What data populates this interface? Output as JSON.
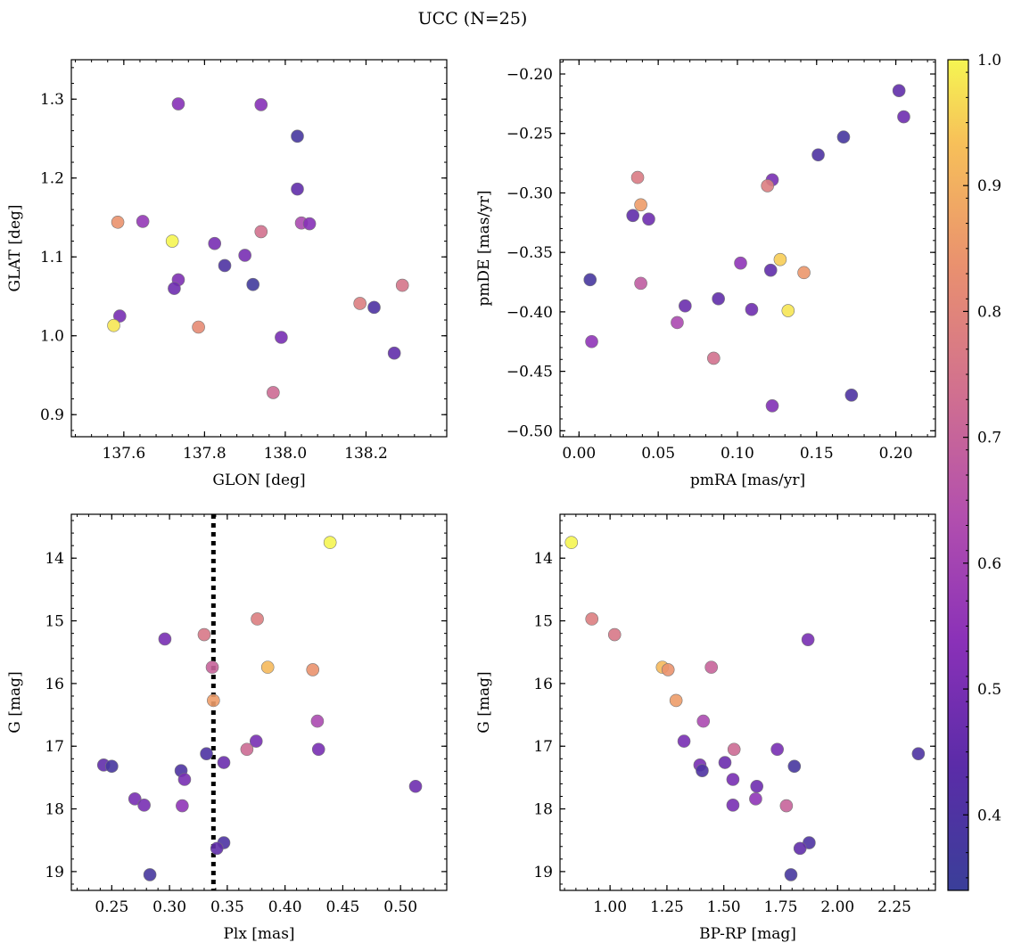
{
  "figure": {
    "title": "UCC (N=25)"
  },
  "colorbar": {
    "range": [
      0.34,
      1.0
    ],
    "ticks": [
      "0.4",
      "0.5",
      "0.6",
      "0.7",
      "0.8",
      "0.9",
      "1.0"
    ],
    "tick_values": [
      0.4,
      0.5,
      0.6,
      0.7,
      0.8,
      0.9,
      1.0
    ],
    "colormap": "plasma"
  },
  "chart_data": [
    {
      "type": "scatter",
      "xlabel": "GLON [deg]",
      "ylabel": "GLAT [deg]",
      "xlim": [
        137.47,
        138.4
      ],
      "ylim": [
        0.872,
        1.35
      ],
      "xticks": [
        137.6,
        137.8,
        138.0,
        138.2
      ],
      "xtick_labels": [
        "137.6",
        "137.8",
        "138.0",
        "138.2"
      ],
      "yticks": [
        0.9,
        1.0,
        1.1,
        1.2,
        1.3
      ],
      "ytick_labels": [
        "0.9",
        "1.0",
        "1.1",
        "1.2",
        "1.3"
      ],
      "y_inverted": false,
      "points": [
        {
          "x": 137.735,
          "y": 1.294,
          "c": 0.53
        },
        {
          "x": 137.94,
          "y": 1.293,
          "c": 0.53
        },
        {
          "x": 138.03,
          "y": 1.253,
          "c": 0.38
        },
        {
          "x": 138.03,
          "y": 1.186,
          "c": 0.45
        },
        {
          "x": 137.585,
          "y": 1.144,
          "c": 0.84
        },
        {
          "x": 137.647,
          "y": 1.145,
          "c": 0.56
        },
        {
          "x": 138.04,
          "y": 1.143,
          "c": 0.62
        },
        {
          "x": 138.06,
          "y": 1.142,
          "c": 0.53
        },
        {
          "x": 137.94,
          "y": 1.132,
          "c": 0.74
        },
        {
          "x": 137.72,
          "y": 1.12,
          "c": 1.0
        },
        {
          "x": 137.825,
          "y": 1.117,
          "c": 0.5
        },
        {
          "x": 137.9,
          "y": 1.102,
          "c": 0.5
        },
        {
          "x": 137.85,
          "y": 1.089,
          "c": 0.4
        },
        {
          "x": 137.735,
          "y": 1.071,
          "c": 0.51
        },
        {
          "x": 137.92,
          "y": 1.065,
          "c": 0.36
        },
        {
          "x": 137.725,
          "y": 1.06,
          "c": 0.48
        },
        {
          "x": 138.29,
          "y": 1.064,
          "c": 0.75
        },
        {
          "x": 138.185,
          "y": 1.041,
          "c": 0.78
        },
        {
          "x": 138.22,
          "y": 1.036,
          "c": 0.4
        },
        {
          "x": 137.59,
          "y": 1.025,
          "c": 0.5
        },
        {
          "x": 137.575,
          "y": 1.013,
          "c": 0.98
        },
        {
          "x": 137.785,
          "y": 1.011,
          "c": 0.82
        },
        {
          "x": 137.99,
          "y": 0.998,
          "c": 0.5
        },
        {
          "x": 138.27,
          "y": 0.978,
          "c": 0.45
        },
        {
          "x": 137.97,
          "y": 0.928,
          "c": 0.72
        }
      ]
    },
    {
      "type": "scatter",
      "xlabel": "pmRA [mas/yr]",
      "ylabel": "pmDE [mas/yr]",
      "xlim": [
        -0.012,
        0.225
      ],
      "ylim": [
        -0.505,
        -0.188
      ],
      "xticks": [
        0.0,
        0.05,
        0.1,
        0.15,
        0.2
      ],
      "xtick_labels": [
        "0.00",
        "0.05",
        "0.10",
        "0.15",
        "0.20"
      ],
      "yticks": [
        -0.5,
        -0.45,
        -0.4,
        -0.35,
        -0.3,
        -0.25,
        -0.2
      ],
      "ytick_labels": [
        "−0.50",
        "−0.45",
        "−0.40",
        "−0.35",
        "−0.30",
        "−0.25",
        "−0.20"
      ],
      "y_inverted": false,
      "points": [
        {
          "x": 0.202,
          "y": -0.214,
          "c": 0.45
        },
        {
          "x": 0.205,
          "y": -0.236,
          "c": 0.48
        },
        {
          "x": 0.167,
          "y": -0.253,
          "c": 0.38
        },
        {
          "x": 0.151,
          "y": -0.268,
          "c": 0.4
        },
        {
          "x": 0.122,
          "y": -0.289,
          "c": 0.5
        },
        {
          "x": 0.037,
          "y": -0.287,
          "c": 0.77
        },
        {
          "x": 0.119,
          "y": -0.294,
          "c": 0.78
        },
        {
          "x": 0.039,
          "y": -0.31,
          "c": 0.86
        },
        {
          "x": 0.034,
          "y": -0.319,
          "c": 0.45
        },
        {
          "x": 0.044,
          "y": -0.322,
          "c": 0.48
        },
        {
          "x": 0.127,
          "y": -0.356,
          "c": 0.95
        },
        {
          "x": 0.102,
          "y": -0.359,
          "c": 0.55
        },
        {
          "x": 0.121,
          "y": -0.365,
          "c": 0.45
        },
        {
          "x": 0.142,
          "y": -0.367,
          "c": 0.85
        },
        {
          "x": 0.007,
          "y": -0.373,
          "c": 0.38
        },
        {
          "x": 0.039,
          "y": -0.376,
          "c": 0.68
        },
        {
          "x": 0.088,
          "y": -0.389,
          "c": 0.45
        },
        {
          "x": 0.067,
          "y": -0.395,
          "c": 0.47
        },
        {
          "x": 0.109,
          "y": -0.398,
          "c": 0.48
        },
        {
          "x": 0.132,
          "y": -0.399,
          "c": 0.98
        },
        {
          "x": 0.062,
          "y": -0.409,
          "c": 0.62
        },
        {
          "x": 0.008,
          "y": -0.425,
          "c": 0.55
        },
        {
          "x": 0.085,
          "y": -0.439,
          "c": 0.74
        },
        {
          "x": 0.172,
          "y": -0.47,
          "c": 0.4
        },
        {
          "x": 0.122,
          "y": -0.479,
          "c": 0.52
        }
      ]
    },
    {
      "type": "scatter",
      "xlabel": "Plx [mas]",
      "ylabel": "G [mag]",
      "xlim": [
        0.215,
        0.54
      ],
      "ylim": [
        13.3,
        19.3
      ],
      "xticks": [
        0.25,
        0.3,
        0.35,
        0.4,
        0.45,
        0.5
      ],
      "xtick_labels": [
        "0.25",
        "0.30",
        "0.35",
        "0.40",
        "0.45",
        "0.50"
      ],
      "yticks": [
        14,
        15,
        16,
        17,
        18,
        19
      ],
      "ytick_labels": [
        "14",
        "15",
        "16",
        "17",
        "18",
        "19"
      ],
      "y_inverted": true,
      "vline": 0.338,
      "points": [
        {
          "x": 0.439,
          "y": 13.75,
          "c": 1.0
        },
        {
          "x": 0.376,
          "y": 14.97,
          "c": 0.78
        },
        {
          "x": 0.296,
          "y": 15.29,
          "c": 0.5
        },
        {
          "x": 0.33,
          "y": 15.22,
          "c": 0.76
        },
        {
          "x": 0.337,
          "y": 15.74,
          "c": 0.7
        },
        {
          "x": 0.385,
          "y": 15.74,
          "c": 0.92
        },
        {
          "x": 0.424,
          "y": 15.78,
          "c": 0.84
        },
        {
          "x": 0.338,
          "y": 16.27,
          "c": 0.86
        },
        {
          "x": 0.428,
          "y": 16.6,
          "c": 0.62
        },
        {
          "x": 0.375,
          "y": 16.92,
          "c": 0.5
        },
        {
          "x": 0.429,
          "y": 17.05,
          "c": 0.5
        },
        {
          "x": 0.367,
          "y": 17.05,
          "c": 0.72
        },
        {
          "x": 0.332,
          "y": 17.12,
          "c": 0.4
        },
        {
          "x": 0.347,
          "y": 17.26,
          "c": 0.47
        },
        {
          "x": 0.243,
          "y": 17.3,
          "c": 0.45
        },
        {
          "x": 0.25,
          "y": 17.32,
          "c": 0.38
        },
        {
          "x": 0.31,
          "y": 17.39,
          "c": 0.4
        },
        {
          "x": 0.313,
          "y": 17.53,
          "c": 0.5
        },
        {
          "x": 0.513,
          "y": 17.64,
          "c": 0.48
        },
        {
          "x": 0.27,
          "y": 17.84,
          "c": 0.5
        },
        {
          "x": 0.278,
          "y": 17.94,
          "c": 0.5
        },
        {
          "x": 0.311,
          "y": 17.95,
          "c": 0.55
        },
        {
          "x": 0.347,
          "y": 18.54,
          "c": 0.4
        },
        {
          "x": 0.341,
          "y": 18.63,
          "c": 0.45
        },
        {
          "x": 0.283,
          "y": 19.05,
          "c": 0.38
        }
      ]
    },
    {
      "type": "scatter",
      "xlabel": "BP-RP [mag]",
      "ylabel": "G [mag]",
      "xlim": [
        0.78,
        2.43
      ],
      "ylim": [
        13.3,
        19.3
      ],
      "xticks": [
        1.0,
        1.25,
        1.5,
        1.75,
        2.0,
        2.25
      ],
      "xtick_labels": [
        "1.00",
        "1.25",
        "1.50",
        "1.75",
        "2.00",
        "2.25"
      ],
      "yticks": [
        14,
        15,
        16,
        17,
        18,
        19
      ],
      "ytick_labels": [
        "14",
        "15",
        "16",
        "17",
        "18",
        "19"
      ],
      "y_inverted": true,
      "points": [
        {
          "x": 0.83,
          "y": 13.75,
          "c": 1.0
        },
        {
          "x": 0.92,
          "y": 14.97,
          "c": 0.78
        },
        {
          "x": 1.02,
          "y": 15.22,
          "c": 0.76
        },
        {
          "x": 1.87,
          "y": 15.3,
          "c": 0.5
        },
        {
          "x": 1.23,
          "y": 15.74,
          "c": 0.92
        },
        {
          "x": 1.445,
          "y": 15.74,
          "c": 0.7
        },
        {
          "x": 1.255,
          "y": 15.78,
          "c": 0.84
        },
        {
          "x": 1.29,
          "y": 16.27,
          "c": 0.86
        },
        {
          "x": 1.41,
          "y": 16.6,
          "c": 0.62
        },
        {
          "x": 1.325,
          "y": 16.92,
          "c": 0.5
        },
        {
          "x": 1.545,
          "y": 17.05,
          "c": 0.72
        },
        {
          "x": 1.735,
          "y": 17.05,
          "c": 0.5
        },
        {
          "x": 2.355,
          "y": 17.12,
          "c": 0.4
        },
        {
          "x": 1.505,
          "y": 17.26,
          "c": 0.47
        },
        {
          "x": 1.395,
          "y": 17.3,
          "c": 0.5
        },
        {
          "x": 1.81,
          "y": 17.32,
          "c": 0.38
        },
        {
          "x": 1.405,
          "y": 17.39,
          "c": 0.4
        },
        {
          "x": 1.54,
          "y": 17.53,
          "c": 0.5
        },
        {
          "x": 1.645,
          "y": 17.64,
          "c": 0.48
        },
        {
          "x": 1.64,
          "y": 17.84,
          "c": 0.55
        },
        {
          "x": 1.54,
          "y": 17.94,
          "c": 0.5
        },
        {
          "x": 1.775,
          "y": 17.95,
          "c": 0.7
        },
        {
          "x": 1.875,
          "y": 18.54,
          "c": 0.4
        },
        {
          "x": 1.835,
          "y": 18.63,
          "c": 0.45
        },
        {
          "x": 1.795,
          "y": 19.05,
          "c": 0.38
        }
      ]
    }
  ]
}
